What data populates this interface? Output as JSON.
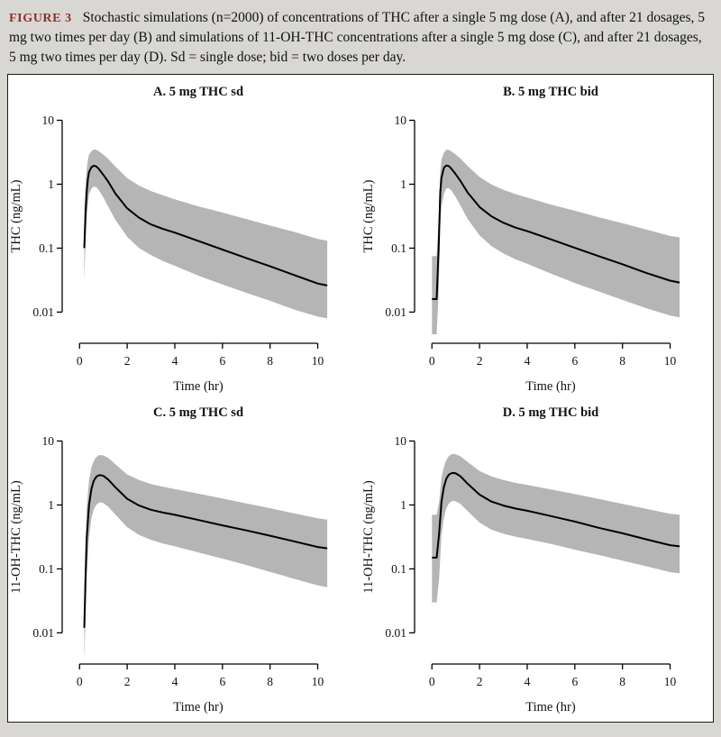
{
  "page": {
    "background": "#d8d7d3"
  },
  "caption": {
    "label": "FIGURE 3",
    "text": "Stochastic simulations (n=2000) of concentrations of THC after a single 5 mg dose (A), and after 21 dosages, 5 mg two times per day (B) and simulations of 11-OH-THC concentrations after a single 5 mg dose (C), and after 21 dosages, 5 mg two times per day (D). Sd = single dose; bid = two doses per day."
  },
  "style": {
    "band_color": "#b5b5b5",
    "line_color": "#000000",
    "caption_label_color": "#8f2f2a"
  },
  "chart_data": [
    {
      "type": "line",
      "title": "A. 5 mg THC sd",
      "xlabel": "Time (hr)",
      "ylabel": "THC (ng/mL)",
      "x_ticks": [
        0,
        2,
        4,
        6,
        8,
        10
      ],
      "y_ticks": [
        0.01,
        0.1,
        1,
        10
      ],
      "xlim": [
        0,
        10.4
      ],
      "ylim": [
        0.01,
        10
      ],
      "y_scale": "log10",
      "x": [
        0.2,
        0.25,
        0.3,
        0.35,
        0.4,
        0.5,
        0.6,
        0.7,
        0.8,
        1.0,
        1.2,
        1.5,
        2.0,
        2.5,
        3.0,
        3.5,
        4.0,
        5.0,
        6.0,
        7.0,
        8.0,
        9.0,
        10.0,
        10.4
      ],
      "median": [
        0.1,
        0.35,
        0.75,
        1.2,
        1.55,
        1.85,
        1.95,
        1.9,
        1.75,
        1.4,
        1.1,
        0.72,
        0.42,
        0.3,
        0.235,
        0.2,
        0.175,
        0.129,
        0.095,
        0.07,
        0.052,
        0.038,
        0.028,
        0.026
      ],
      "upper": [
        0.4,
        1.0,
        1.7,
        2.4,
        2.9,
        3.3,
        3.5,
        3.45,
        3.3,
        2.9,
        2.5,
        1.9,
        1.25,
        0.95,
        0.78,
        0.67,
        0.58,
        0.45,
        0.36,
        0.285,
        0.225,
        0.18,
        0.14,
        0.13
      ],
      "lower": [
        0.03,
        0.12,
        0.3,
        0.5,
        0.7,
        0.85,
        0.92,
        0.9,
        0.82,
        0.62,
        0.45,
        0.28,
        0.15,
        0.1,
        0.078,
        0.063,
        0.053,
        0.037,
        0.027,
        0.02,
        0.015,
        0.011,
        0.0085,
        0.008
      ]
    },
    {
      "type": "line",
      "title": "B. 5 mg THC bid",
      "xlabel": "Time (hr)",
      "ylabel": "THC (ng/mL)",
      "x_ticks": [
        0,
        2,
        4,
        6,
        8,
        10
      ],
      "y_ticks": [
        0.01,
        0.1,
        1,
        10
      ],
      "xlim": [
        0,
        10.4
      ],
      "ylim": [
        0.01,
        10
      ],
      "y_scale": "log10",
      "x": [
        0,
        0.1,
        0.2,
        0.28,
        0.35,
        0.4,
        0.5,
        0.6,
        0.7,
        0.8,
        1.0,
        1.2,
        1.5,
        2.0,
        2.5,
        3.0,
        3.5,
        4.0,
        5.0,
        6.0,
        7.0,
        8.0,
        9.0,
        10.0,
        10.4
      ],
      "median": [
        0.016,
        0.016,
        0.016,
        0.1,
        0.75,
        1.25,
        1.8,
        1.96,
        1.93,
        1.78,
        1.43,
        1.12,
        0.74,
        0.44,
        0.315,
        0.25,
        0.21,
        0.185,
        0.137,
        0.101,
        0.075,
        0.056,
        0.041,
        0.031,
        0.029
      ],
      "upper": [
        0.075,
        0.075,
        0.075,
        0.3,
        1.6,
        2.4,
        3.1,
        3.45,
        3.45,
        3.3,
        2.9,
        2.52,
        1.92,
        1.3,
        0.99,
        0.82,
        0.7,
        0.62,
        0.48,
        0.385,
        0.305,
        0.245,
        0.195,
        0.155,
        0.147
      ],
      "lower": [
        0.0045,
        0.0045,
        0.0045,
        0.02,
        0.22,
        0.45,
        0.7,
        0.86,
        0.87,
        0.81,
        0.63,
        0.46,
        0.285,
        0.158,
        0.107,
        0.083,
        0.067,
        0.057,
        0.04,
        0.0285,
        0.021,
        0.0155,
        0.0115,
        0.0088,
        0.0083
      ]
    },
    {
      "type": "line",
      "title": "C. 5 mg THC sd",
      "xlabel": "Time (hr)",
      "ylabel": "11-OH-THC (ng/mL)",
      "x_ticks": [
        0,
        2,
        4,
        6,
        8,
        10
      ],
      "y_ticks": [
        0.01,
        0.1,
        1,
        10
      ],
      "xlim": [
        0,
        10.4
      ],
      "ylim": [
        0.01,
        10
      ],
      "y_scale": "log10",
      "x": [
        0.2,
        0.25,
        0.3,
        0.4,
        0.5,
        0.6,
        0.7,
        0.8,
        0.9,
        1.0,
        1.2,
        1.5,
        2.0,
        2.5,
        3.0,
        3.5,
        4.0,
        5.0,
        6.0,
        7.0,
        8.0,
        9.0,
        10.0,
        10.4
      ],
      "median": [
        0.012,
        0.07,
        0.3,
        1.0,
        1.8,
        2.4,
        2.75,
        2.9,
        2.92,
        2.85,
        2.5,
        1.9,
        1.25,
        0.98,
        0.84,
        0.76,
        0.7,
        0.58,
        0.48,
        0.4,
        0.33,
        0.27,
        0.22,
        0.21
      ],
      "upper": [
        0.05,
        0.25,
        0.9,
        2.4,
        3.9,
        4.9,
        5.6,
        5.95,
        6.05,
        5.95,
        5.45,
        4.35,
        3.0,
        2.45,
        2.12,
        1.92,
        1.77,
        1.5,
        1.26,
        1.06,
        0.89,
        0.74,
        0.62,
        0.59
      ],
      "lower": [
        0.0035,
        0.017,
        0.08,
        0.31,
        0.62,
        0.86,
        1.0,
        1.08,
        1.1,
        1.07,
        0.94,
        0.71,
        0.45,
        0.34,
        0.285,
        0.25,
        0.225,
        0.18,
        0.145,
        0.115,
        0.09,
        0.07,
        0.055,
        0.052
      ]
    },
    {
      "type": "line",
      "title": "D. 5 mg THC bid",
      "xlabel": "Time (hr)",
      "ylabel": "11-OH-THC (ng/mL)",
      "x_ticks": [
        0,
        2,
        4,
        6,
        8,
        10
      ],
      "y_ticks": [
        0.01,
        0.1,
        1,
        10
      ],
      "xlim": [
        0,
        10.4
      ],
      "ylim": [
        0.01,
        10
      ],
      "y_scale": "log10",
      "x": [
        0,
        0.1,
        0.2,
        0.3,
        0.4,
        0.5,
        0.6,
        0.7,
        0.8,
        0.9,
        1.0,
        1.2,
        1.5,
        2.0,
        2.5,
        3.0,
        3.5,
        4.0,
        5.0,
        6.0,
        7.0,
        8.0,
        9.0,
        10.0,
        10.4
      ],
      "median": [
        0.15,
        0.15,
        0.15,
        0.35,
        1.1,
        1.9,
        2.55,
        2.95,
        3.12,
        3.17,
        3.12,
        2.8,
        2.15,
        1.45,
        1.13,
        0.98,
        0.88,
        0.81,
        0.67,
        0.55,
        0.44,
        0.36,
        0.29,
        0.235,
        0.225
      ],
      "upper": [
        0.7,
        0.7,
        0.7,
        1.1,
        2.6,
        3.9,
        5.0,
        5.75,
        6.15,
        6.3,
        6.2,
        5.75,
        4.7,
        3.4,
        2.8,
        2.45,
        2.22,
        2.05,
        1.75,
        1.48,
        1.24,
        1.04,
        0.87,
        0.73,
        0.7
      ],
      "lower": [
        0.03,
        0.03,
        0.03,
        0.07,
        0.33,
        0.63,
        0.88,
        1.04,
        1.13,
        1.16,
        1.14,
        1.03,
        0.8,
        0.53,
        0.41,
        0.355,
        0.32,
        0.295,
        0.245,
        0.2,
        0.165,
        0.135,
        0.11,
        0.089,
        0.085
      ]
    }
  ]
}
